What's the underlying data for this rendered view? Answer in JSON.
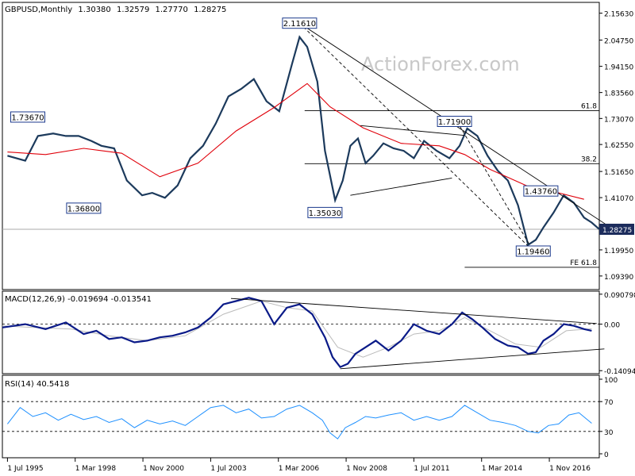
{
  "chart_data": {
    "type": "line",
    "title": "GBPUSD,Monthly",
    "ohlc": [
      "1.30380",
      "1.32579",
      "1.27770",
      "1.28275"
    ],
    "watermark": "ActionForex.com",
    "time_labels": [
      "1 Jul 1995",
      "1 Mar 1998",
      "1 Nov 2000",
      "1 Jul 2003",
      "1 Mar 2006",
      "1 Nov 2008",
      "1 Jul 2011",
      "1 Mar 2014",
      "1 Nov 2016"
    ],
    "time_range": [
      1995.3,
      2018.8
    ],
    "price_panel": {
      "ylim": [
        1.039,
        2.2
      ],
      "ticks": [
        {
          "v": 2.1563,
          "t": "2.15630"
        },
        {
          "v": 2.0475,
          "t": "2.04750"
        },
        {
          "v": 1.9415,
          "t": "1.94150"
        },
        {
          "v": 1.8356,
          "t": "1.83560"
        },
        {
          "v": 1.7307,
          "t": "1.73070"
        },
        {
          "v": 1.6255,
          "t": "1.62550"
        },
        {
          "v": 1.5165,
          "t": "1.51650"
        },
        {
          "v": 1.4107,
          "t": "1.41070"
        },
        {
          "v": 1.1995,
          "t": "1.19950"
        },
        {
          "v": 1.0939,
          "t": "1.09390"
        }
      ],
      "current": {
        "value": 1.28275,
        "label": "1.28275"
      },
      "callouts": [
        {
          "t": "2.11610",
          "x": 2007.0,
          "y": 2.1161
        },
        {
          "t": "1.73670",
          "x": 1996.3,
          "y": 1.7367
        },
        {
          "t": "1.36800",
          "x": 1998.5,
          "y": 1.368
        },
        {
          "t": "1.35030",
          "x": 2008.0,
          "y": 1.3503
        },
        {
          "t": "1.71900",
          "x": 2013.1,
          "y": 1.719
        },
        {
          "t": "1.43760",
          "x": 2016.5,
          "y": 1.4376
        },
        {
          "t": "1.19460",
          "x": 2016.2,
          "y": 1.1946
        }
      ],
      "levels": [
        {
          "label": "61.8",
          "y": 1.762,
          "x0": 2007.2
        },
        {
          "label": "38.2",
          "y": 1.548,
          "x0": 2007.2
        },
        {
          "label": "FE 61.8",
          "y": 1.129,
          "x0": 2013.5
        }
      ],
      "trendlines": [
        {
          "style": "solid",
          "x": [
            2007.0,
            2019.2
          ],
          "y": [
            2.1161,
            1.293
          ]
        },
        {
          "style": "dashed",
          "x": [
            2007.0,
            2016.2
          ],
          "y": [
            2.1161,
            1.1946
          ]
        },
        {
          "style": "dashed",
          "x": [
            2013.2,
            2016.2
          ],
          "y": [
            1.719,
            1.1946
          ]
        },
        {
          "style": "solid",
          "x": [
            2009.4,
            2013.5
          ],
          "y": [
            1.702,
            1.662
          ]
        },
        {
          "style": "solid",
          "x": [
            2009.0,
            2013.0
          ],
          "y": [
            1.42,
            1.49
          ]
        }
      ],
      "ma": {
        "x": [
          1995.5,
          1997,
          1998.5,
          2000,
          2001.5,
          2003,
          2004.5,
          2006,
          2007.3,
          2008.2,
          2009.5,
          2011,
          2012.5,
          2013.5,
          2014.5,
          2016,
          2017,
          2018.2
        ],
        "y": [
          1.595,
          1.585,
          1.61,
          1.59,
          1.495,
          1.55,
          1.68,
          1.775,
          1.872,
          1.778,
          1.693,
          1.63,
          1.62,
          1.585,
          1.525,
          1.456,
          1.435,
          1.404
        ]
      },
      "price": {
        "x": [
          1995.5,
          1996.2,
          1996.7,
          1997.3,
          1997.8,
          1998.3,
          1998.8,
          1999.2,
          1999.7,
          2000.2,
          2000.8,
          2001.2,
          2001.7,
          2002.2,
          2002.7,
          2003.2,
          2003.7,
          2004.2,
          2004.7,
          2005.2,
          2005.7,
          2006.2,
          2006.7,
          2007.0,
          2007.3,
          2007.7,
          2008.0,
          2008.4,
          2008.7,
          2009.0,
          2009.3,
          2009.6,
          2009.9,
          2010.3,
          2010.7,
          2011.1,
          2011.5,
          2011.9,
          2012.4,
          2012.9,
          2013.3,
          2013.6,
          2014.0,
          2014.4,
          2014.8,
          2015.2,
          2015.6,
          2016.0,
          2016.3,
          2016.6,
          2017.0,
          2017.4,
          2017.8,
          2018.2,
          2018.5,
          2018.8
        ],
        "y": [
          1.58,
          1.56,
          1.66,
          1.67,
          1.66,
          1.66,
          1.64,
          1.62,
          1.61,
          1.48,
          1.42,
          1.43,
          1.41,
          1.46,
          1.57,
          1.62,
          1.71,
          1.82,
          1.85,
          1.89,
          1.8,
          1.76,
          1.95,
          2.06,
          2.02,
          1.88,
          1.6,
          1.4,
          1.48,
          1.62,
          1.65,
          1.55,
          1.58,
          1.63,
          1.61,
          1.6,
          1.57,
          1.64,
          1.6,
          1.57,
          1.62,
          1.69,
          1.66,
          1.58,
          1.52,
          1.48,
          1.38,
          1.22,
          1.24,
          1.29,
          1.35,
          1.42,
          1.39,
          1.33,
          1.31,
          1.283
        ]
      }
    },
    "macd_panel": {
      "label": "MACD(12,26,9) -0.019694 -0.013541",
      "ylim": [
        -0.15,
        0.1
      ],
      "ticks": [
        {
          "v": 0.090798,
          "t": "0.090798"
        },
        {
          "v": 0.0,
          "t": "0.00"
        },
        {
          "v": -0.14094,
          "t": "-0.14094"
        }
      ],
      "macd": {
        "x": [
          1995.3,
          1996.2,
          1997.0,
          1997.8,
          1998.5,
          1999.0,
          1999.5,
          2000.0,
          2000.5,
          2001.0,
          2001.5,
          2002.0,
          2002.5,
          2003.0,
          2003.5,
          2004.0,
          2004.5,
          2005.0,
          2005.5,
          2006.0,
          2006.5,
          2007.0,
          2007.5,
          2008.0,
          2008.3,
          2008.6,
          2008.9,
          2009.2,
          2009.6,
          2010.0,
          2010.5,
          2011.0,
          2011.5,
          2012.0,
          2012.5,
          2013.0,
          2013.4,
          2013.8,
          2014.2,
          2014.7,
          2015.2,
          2015.6,
          2016.0,
          2016.3,
          2016.6,
          2017.0,
          2017.4,
          2017.8,
          2018.2,
          2018.5
        ],
        "y": [
          -0.01,
          0.0,
          -0.015,
          0.005,
          -0.03,
          -0.02,
          -0.045,
          -0.04,
          -0.055,
          -0.05,
          -0.04,
          -0.035,
          -0.025,
          -0.01,
          0.02,
          0.06,
          0.07,
          0.08,
          0.07,
          0.0,
          0.05,
          0.06,
          0.03,
          -0.04,
          -0.1,
          -0.13,
          -0.12,
          -0.09,
          -0.07,
          -0.05,
          -0.08,
          -0.05,
          0.0,
          -0.02,
          -0.03,
          0.0,
          0.035,
          0.015,
          -0.01,
          -0.045,
          -0.065,
          -0.07,
          -0.09,
          -0.085,
          -0.05,
          -0.03,
          0.0,
          -0.005,
          -0.015,
          -0.02
        ]
      },
      "signal": {
        "x": [
          1995.3,
          1996.5,
          1998.0,
          1999.5,
          2001.0,
          2002.5,
          2004.0,
          2005.5,
          2006.5,
          2007.5,
          2008.5,
          2009.5,
          2010.5,
          2011.5,
          2012.5,
          2013.5,
          2014.5,
          2015.5,
          2016.5,
          2017.5,
          2018.5
        ],
        "y": [
          -0.005,
          -0.01,
          -0.015,
          -0.035,
          -0.05,
          -0.035,
          0.03,
          0.07,
          0.05,
          0.04,
          -0.07,
          -0.1,
          -0.07,
          -0.03,
          -0.02,
          0.02,
          -0.02,
          -0.06,
          -0.07,
          -0.02,
          -0.014
        ]
      },
      "zero_line": 0.0,
      "trendlines": [
        {
          "x": [
            2004.3,
            2018.7
          ],
          "y": [
            0.078,
            0.002
          ]
        },
        {
          "x": [
            2008.6,
            2019.0
          ],
          "y": [
            -0.135,
            -0.075
          ]
        }
      ]
    },
    "rsi_panel": {
      "label": "RSI(14) 40.5418",
      "ylim": [
        0,
        100
      ],
      "ticks": [
        {
          "v": 100,
          "t": "100"
        },
        {
          "v": 70,
          "t": "70"
        },
        {
          "v": 30,
          "t": "30"
        },
        {
          "v": 0,
          "t": "0"
        }
      ],
      "levels": [
        70,
        30
      ],
      "rsi": {
        "x": [
          1995.5,
          1996.0,
          1996.5,
          1997.0,
          1997.5,
          1998.0,
          1998.5,
          1999.0,
          1999.5,
          2000.0,
          2000.5,
          2001.0,
          2001.5,
          2002.0,
          2002.5,
          2003.0,
          2003.5,
          2004.0,
          2004.5,
          2005.0,
          2005.5,
          2006.0,
          2006.5,
          2007.0,
          2007.5,
          2007.9,
          2008.2,
          2008.5,
          2008.8,
          2009.2,
          2009.6,
          2010.0,
          2010.5,
          2011.0,
          2011.5,
          2012.0,
          2012.5,
          2013.0,
          2013.5,
          2014.0,
          2014.5,
          2015.0,
          2015.5,
          2016.0,
          2016.4,
          2016.8,
          2017.2,
          2017.6,
          2018.0,
          2018.5
        ],
        "y": [
          40,
          62,
          50,
          55,
          45,
          53,
          46,
          50,
          42,
          47,
          35,
          45,
          40,
          44,
          38,
          50,
          62,
          65,
          55,
          60,
          48,
          50,
          60,
          65,
          55,
          45,
          28,
          20,
          35,
          42,
          50,
          48,
          52,
          55,
          45,
          50,
          45,
          50,
          65,
          55,
          45,
          42,
          38,
          30,
          28,
          38,
          40,
          52,
          55,
          41
        ]
      }
    }
  }
}
